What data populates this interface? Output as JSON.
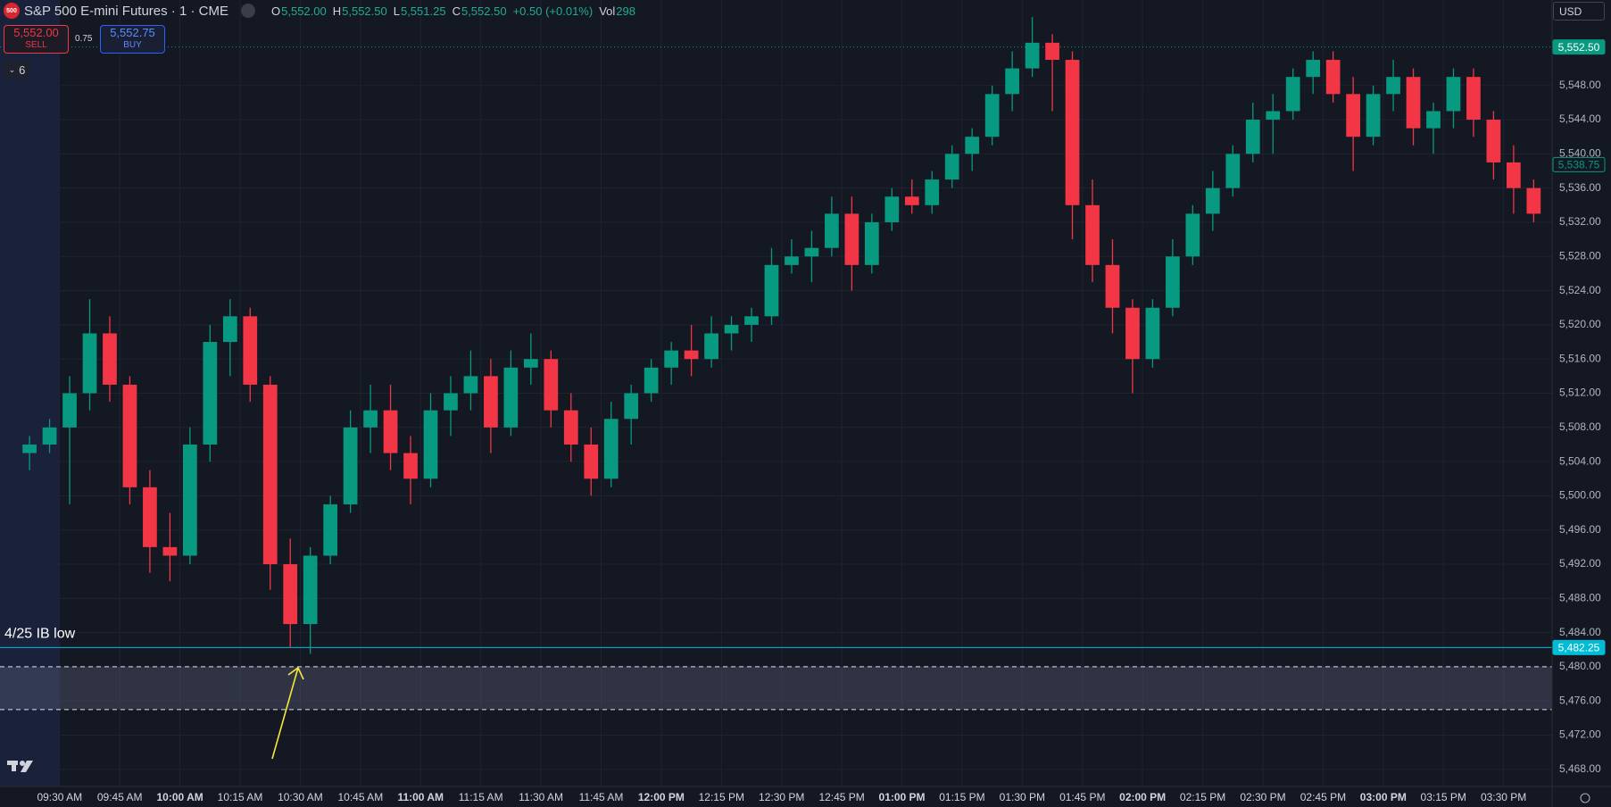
{
  "header": {
    "logo": "500",
    "title": "S&P 500 E-mini Futures · 1 · CME",
    "open_label": "O",
    "open": "5,552.00",
    "high_label": "H",
    "high": "5,552.50",
    "low_label": "L",
    "low": "5,551.25",
    "close_label": "C",
    "close": "5,552.50",
    "change": "+0.50 (+0.01%)",
    "volume_label": "Vol",
    "volume": "298",
    "currency": "USD"
  },
  "trade": {
    "sell_price": "5,552.00",
    "sell": "SELL",
    "spread": "0.75",
    "buy_price": "5,552.75",
    "buy": "BUY",
    "indicators": "6"
  },
  "chart_data": {
    "type": "candlestick",
    "categories": [
      null,
      null,
      "09:30 AM",
      null,
      null,
      "09:45 AM",
      null,
      null,
      "10:00 AM",
      null,
      null,
      "10:15 AM",
      null,
      null,
      "10:30 AM",
      null,
      null,
      "10:45 AM",
      null,
      null,
      "11:00 AM",
      null,
      null,
      "11:15 AM",
      null,
      null,
      "11:30 AM",
      null,
      null,
      "11:45 AM",
      null,
      null,
      "12:00 PM",
      null,
      null,
      "12:15 PM",
      null,
      null,
      "12:30 PM",
      null,
      null,
      "12:45 PM",
      null,
      null,
      "01:00 PM",
      null,
      null,
      "01:15 PM",
      null,
      null,
      "01:30 PM",
      null,
      null,
      "01:45 PM",
      null,
      null,
      "02:00 PM",
      null,
      null,
      "02:15 PM",
      null,
      null,
      "02:30 PM",
      null,
      null,
      "02:45 PM",
      null,
      null,
      "03:00 PM",
      null,
      null,
      "03:15 PM",
      null,
      null,
      "03:30 PM",
      null
    ],
    "open": [
      5505,
      5506,
      5508,
      5512,
      5519,
      5513,
      5501,
      5494,
      5493,
      5506,
      5518,
      5521,
      5513,
      5492,
      5485,
      5493,
      5499,
      5508,
      5510,
      5505,
      5502,
      5510,
      5512,
      5514,
      5508,
      5515,
      5516,
      5510,
      5506,
      5502,
      5509,
      5512,
      5515,
      5517,
      5516,
      5519,
      5520,
      5521,
      5527,
      5528,
      5529,
      5533,
      5527,
      5532,
      5535,
      5534,
      5537,
      5540,
      5542,
      5547,
      5550,
      5553,
      5551,
      5534,
      5527,
      5522,
      5516,
      5522,
      5528,
      5533,
      5536,
      5540,
      5544,
      5545,
      5549,
      5551,
      5547,
      5542,
      5547,
      5549,
      5543,
      5545,
      5549,
      5544,
      5539,
      5536
    ],
    "high": [
      5507,
      5509,
      5514,
      5523,
      5521,
      5514,
      5503,
      5498,
      5508,
      5520,
      5523,
      5522,
      5514,
      5495,
      5494,
      5500,
      5510,
      5513,
      5513,
      5507,
      5512,
      5514,
      5517,
      5516,
      5517,
      5519,
      5517,
      5512,
      5508,
      5511,
      5513,
      5516,
      5518,
      5520,
      5521,
      5521,
      5522,
      5529,
      5530,
      5531,
      5535,
      5535,
      5533,
      5536,
      5537,
      5538,
      5541,
      5543,
      5548,
      5552,
      5556,
      5554,
      5552,
      5537,
      5530,
      5523,
      5523,
      5530,
      5534,
      5538,
      5541,
      5546,
      5547,
      5550,
      5552,
      5552,
      5549,
      5548,
      5551,
      5550,
      5546,
      5550,
      5550,
      5545,
      5541,
      5537
    ],
    "low": [
      5503,
      5505,
      5499,
      5510,
      5511,
      5499,
      5491,
      5490,
      5492,
      5504,
      5514,
      5511,
      5489,
      5482.25,
      5481.5,
      5492,
      5498,
      5505,
      5503,
      5499,
      5501,
      5507,
      5510,
      5505,
      5507,
      5513,
      5508,
      5504,
      5500,
      5501,
      5506,
      5511,
      5513,
      5514,
      5515,
      5517,
      5518,
      5520,
      5526,
      5525,
      5528,
      5524,
      5526,
      5531,
      5533,
      5533,
      5536,
      5538,
      5541,
      5545,
      5549,
      5545,
      5530,
      5525,
      5519,
      5512,
      5515,
      5521,
      5527,
      5531,
      5535,
      5539,
      5540,
      5544,
      5547,
      5546,
      5538,
      5541,
      5545,
      5541,
      5540,
      5543,
      5542,
      5537,
      5533,
      5532
    ],
    "close": [
      5506,
      5508,
      5512,
      5519,
      5513,
      5501,
      5494,
      5493,
      5506,
      5518,
      5521,
      5513,
      5492,
      5485,
      5493,
      5499,
      5508,
      5510,
      5505,
      5502,
      5510,
      5512,
      5514,
      5508,
      5515,
      5516,
      5510,
      5506,
      5502,
      5509,
      5512,
      5515,
      5517,
      5516,
      5519,
      5520,
      5521,
      5527,
      5528,
      5529,
      5533,
      5527,
      5532,
      5535,
      5534,
      5537,
      5540,
      5542,
      5547,
      5550,
      5553,
      5551,
      5534,
      5527,
      5522,
      5516,
      5522,
      5528,
      5533,
      5536,
      5540,
      5544,
      5545,
      5549,
      5551,
      5547,
      5542,
      5547,
      5549,
      5543,
      5545,
      5549,
      5544,
      5539,
      5536,
      5533
    ],
    "up_color": "#089981",
    "down_color": "#f23645",
    "ylim": [
      5466,
      5558
    ],
    "yticks": [
      {
        "value": 5468,
        "label": "5,468.00"
      },
      {
        "value": 5472,
        "label": "5,472.00"
      },
      {
        "value": 5476,
        "label": "5,476.00"
      },
      {
        "value": 5480,
        "label": "5,480.00"
      },
      {
        "value": 5484,
        "label": "5,484.00"
      },
      {
        "value": 5488,
        "label": "5,488.00"
      },
      {
        "value": 5492,
        "label": "5,492.00"
      },
      {
        "value": 5496,
        "label": "5,496.00"
      },
      {
        "value": 5500,
        "label": "5,500.00"
      },
      {
        "value": 5504,
        "label": "5,504.00"
      },
      {
        "value": 5508,
        "label": "5,508.00"
      },
      {
        "value": 5512,
        "label": "5,512.00"
      },
      {
        "value": 5516,
        "label": "5,516.00"
      },
      {
        "value": 5520,
        "label": "5,520.00"
      },
      {
        "value": 5524,
        "label": "5,524.00"
      },
      {
        "value": 5528,
        "label": "5,528.00"
      },
      {
        "value": 5532,
        "label": "5,532.00"
      },
      {
        "value": 5536,
        "label": "5,536.00"
      },
      {
        "value": 5540,
        "label": "5,540.00"
      },
      {
        "value": 5544,
        "label": "5,544.00"
      },
      {
        "value": 5548,
        "label": "5,548.00"
      }
    ],
    "grid": true,
    "price_line": {
      "value": 5552.5,
      "label": "5,552.50",
      "color": "#089981"
    },
    "last_price": {
      "value": 5538.75,
      "label": "5,538.75",
      "color": "#089981"
    },
    "level": {
      "value": 5482.25,
      "label": "5,482.25",
      "text": "4/25 IB low",
      "color": "#00bcd4"
    },
    "zone": [
      5480,
      5475
    ]
  }
}
